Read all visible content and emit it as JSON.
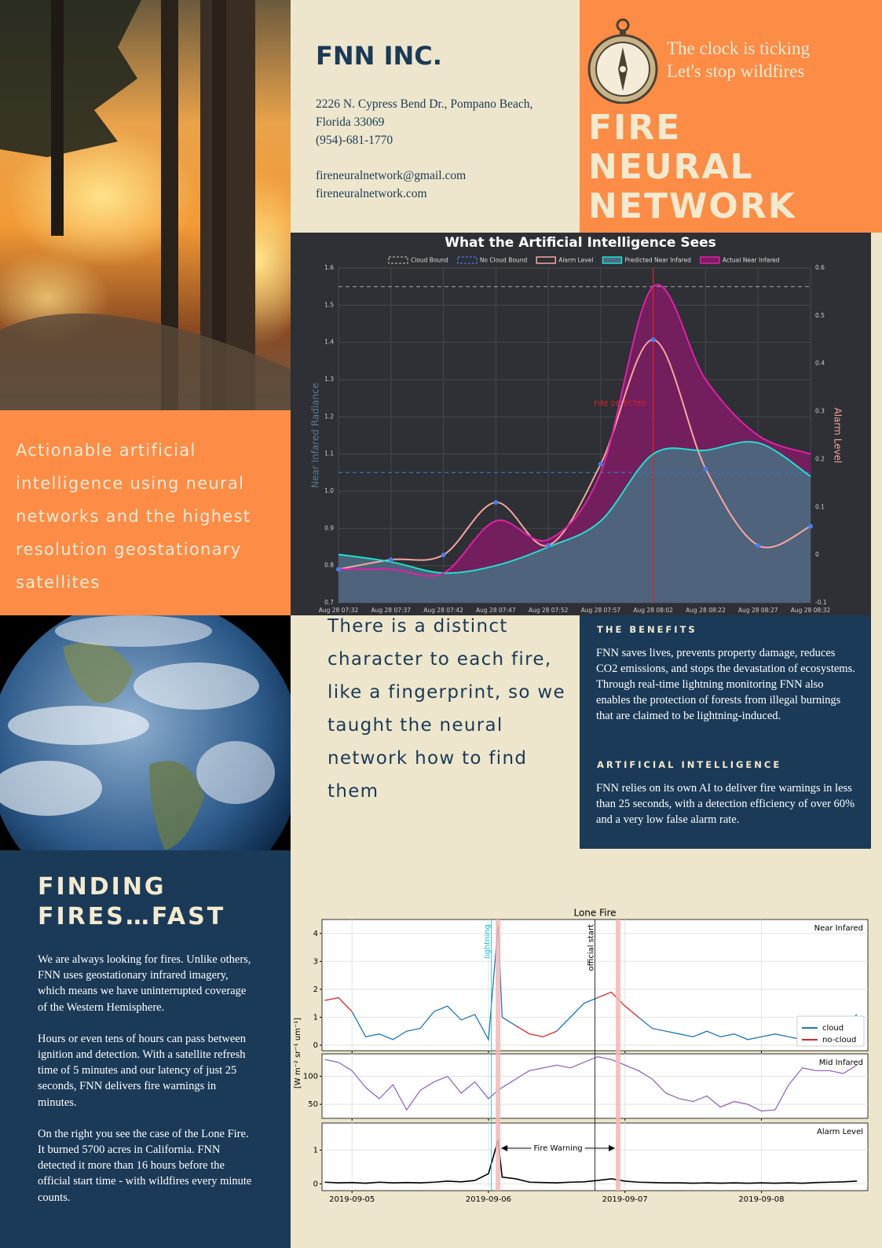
{
  "header": {
    "company": "FNN INC.",
    "address": [
      "2226 N. Cypress Bend Dr., Pompano Beach,",
      "Florida 33069",
      "(954)-681-1770"
    ],
    "contact": [
      "fireneuralnetwork@gmail.com",
      "fireneuralnetwork.com"
    ]
  },
  "banner": {
    "tagline": [
      "The clock is ticking",
      "Let's stop wildfires"
    ],
    "title": [
      "FIRE",
      "NEURAL",
      "NETWORK"
    ]
  },
  "intro": "Actionable artificial intelligence using neural networks and the highest resolution geostationary satellites",
  "quote": "There is a distinct character to each fire, like a fingerprint, so we taught the neural network how to find them",
  "benefits": {
    "heading": "THE BENEFITS",
    "text": "FNN saves lives, prevents property damage, reduces CO2 emissions, and stops the devastation of ecosystems. Through real-time lightning monitoring FNN also enables the protection of forests from illegal burnings that are claimed to be lightning-induced."
  },
  "ai": {
    "heading": "ARTIFICIAL INTELLIGENCE",
    "text": "FNN relies on its own AI to deliver fire warnings in less than 25 seconds, with a detection efficiency of over 60% and a very low false alarm rate."
  },
  "finding": {
    "title": [
      "FINDING",
      "FIRES…FAST"
    ],
    "paragraphs": [
      "We are always looking for fires. Unlike others, FNN uses geostationary infrared imagery, which means we have uninterrupted coverage of the Western Hemisphere.",
      "Hours or even tens of hours can pass between ignition and detection. With a satellite refresh time of 5 minutes and our latency of just 25 seconds, FNN delivers fire warnings in minutes.",
      "On the right you see the case of the Lone Fire. It burned 5700 acres in California. FNN detected it more than 16 hours before the official start time - with wildfires every minute counts."
    ]
  },
  "chart_data": [
    {
      "type": "line",
      "title": "What the Artificial Intelligence Sees",
      "categories": [
        "Aug 28 07:32",
        "Aug 28 07:37",
        "Aug 28 07:42",
        "Aug 28 07:47",
        "Aug 28 07:52",
        "Aug 28 07:57",
        "Aug 28 08:02",
        "Aug 28 08:22",
        "Aug 28 08:27",
        "Aug 28 08:32"
      ],
      "ylabel": "Near Infared Radiance",
      "y2label": "Alarm Level",
      "ylim": [
        0.7,
        1.6
      ],
      "yticks": [
        0.7,
        0.8,
        0.9,
        {
          "value": 1,
          "label": "1.0"
        },
        1.1,
        1.2,
        1.3,
        1.4,
        1.5,
        1.6
      ],
      "y2lim": [
        -0.1,
        0.6
      ],
      "y2ticks": [
        -0.1,
        0,
        0.1,
        0.2,
        0.3,
        0.4,
        0.5,
        0.6
      ],
      "grid": true,
      "legend": "top",
      "series": [
        {
          "name": "Cloud Bound",
          "color": "#9a9a9a",
          "dashed": true,
          "values": [
            1.55,
            1.55,
            1.55,
            1.55,
            1.55,
            1.55,
            1.55,
            1.55,
            1.55,
            1.55
          ]
        },
        {
          "name": "No Cloud Bound",
          "color": "#3f6fd0",
          "dashed": true,
          "values": [
            1.05,
            1.05,
            1.05,
            1.05,
            1.05,
            1.05,
            1.05,
            1.05,
            1.05,
            1.05
          ]
        },
        {
          "name": "Alarm Level",
          "color": "#f6a5a0",
          "axis": "y2",
          "marker_color": "#4a7de8",
          "values": [
            -0.03,
            -0.01,
            0.0,
            0.11,
            0.02,
            0.19,
            0.45,
            0.18,
            0.02,
            0.06
          ]
        },
        {
          "name": "Predicted Near Infared",
          "color": "#1fe0d0",
          "fill": "#4b6a80",
          "values": [
            0.83,
            0.81,
            0.78,
            0.8,
            0.85,
            0.92,
            1.1,
            1.11,
            1.13,
            1.04
          ]
        },
        {
          "name": "Actual Near Infared",
          "color": "#e020a8",
          "fill": "#7b1d62",
          "values": [
            0.79,
            0.79,
            0.78,
            0.92,
            0.87,
            1.05,
            1.55,
            1.3,
            1.15,
            1.1
          ]
        }
      ],
      "annotation": {
        "text": "FIRE DETECTED",
        "color": "#d62728"
      }
    },
    {
      "type": "line",
      "title": "Lone Fire",
      "ylabel": "[W m⁻² sr⁻¹ um⁻¹]",
      "x": [
        4.8,
        4.9,
        5.0,
        5.1,
        5.2,
        5.3,
        5.4,
        5.5,
        5.6,
        5.7,
        5.8,
        5.9,
        6.0,
        6.07,
        6.1,
        6.2,
        6.3,
        6.4,
        6.5,
        6.6,
        6.7,
        6.8,
        6.9,
        7.0,
        7.1,
        7.2,
        7.3,
        7.4,
        7.5,
        7.6,
        7.7,
        7.8,
        7.9,
        8.0,
        8.1,
        8.2,
        8.3,
        8.4,
        8.5,
        8.6,
        8.7
      ],
      "xlim": [
        4.78,
        8.78
      ],
      "xticks": [
        {
          "value": 5,
          "label": "2019-09-05"
        },
        {
          "value": 6,
          "label": "2019-09-06"
        },
        {
          "value": 7,
          "label": "2019-09-07"
        },
        {
          "value": 8,
          "label": "2019-09-08"
        }
      ],
      "grid": true,
      "legend": "lower right",
      "events": [
        {
          "label": "lightning",
          "x": 6.02,
          "color": "#17becf"
        },
        {
          "label": "official start",
          "x": 6.78,
          "color": "#000000"
        }
      ],
      "highlights": [
        6.07,
        6.95
      ],
      "highlight_color": "#f4b6b6",
      "warning_label": "Fire Warning",
      "panels": [
        {
          "label": "Near Infared",
          "ylim": [
            -0.2,
            4.5
          ],
          "yticks": [
            0,
            1,
            2,
            3,
            4
          ],
          "series": [
            {
              "name": "cloud",
              "color": "#1f77b4",
              "values": [
                null,
                null,
                1.2,
                0.3,
                0.4,
                0.2,
                0.5,
                0.6,
                1.2,
                1.4,
                0.9,
                1.1,
                0.2,
                4.3,
                1.0,
                0.7,
                null,
                null,
                0.5,
                1.0,
                1.5,
                1.7,
                null,
                null,
                1.0,
                0.6,
                0.5,
                0.4,
                0.3,
                0.5,
                0.3,
                0.4,
                0.2,
                0.3,
                0.4,
                0.3,
                0.2,
                0.6,
                0.8,
                0.7,
                1.1
              ]
            },
            {
              "name": "no-cloud",
              "color": "#d62728",
              "values": [
                1.6,
                1.7,
                1.2,
                null,
                null,
                null,
                null,
                null,
                null,
                null,
                null,
                null,
                null,
                null,
                null,
                0.7,
                0.4,
                0.3,
                0.5,
                null,
                null,
                1.7,
                1.9,
                1.4,
                1.0,
                null,
                null,
                null,
                null,
                null,
                null,
                null,
                null,
                null,
                null,
                null,
                null,
                null,
                null,
                null,
                null
              ]
            }
          ]
        },
        {
          "label": "Mid Infared",
          "ylim": [
            25,
            140
          ],
          "yticks": [
            50,
            100
          ],
          "series": [
            {
              "color": "#9467bd",
              "values": [
                130,
                125,
                110,
                80,
                60,
                85,
                40,
                75,
                90,
                100,
                70,
                90,
                60,
                75,
                80,
                95,
                110,
                115,
                120,
                115,
                125,
                135,
                130,
                120,
                110,
                95,
                70,
                60,
                55,
                65,
                45,
                55,
                50,
                38,
                40,
                85,
                115,
                110,
                110,
                105,
                120
              ]
            }
          ]
        },
        {
          "label": "Alarm Level",
          "ylim": [
            -0.2,
            1.8
          ],
          "yticks": [
            0,
            1
          ],
          "series": [
            {
              "color": "#000000",
              "values": [
                0.05,
                0.03,
                0.04,
                0.02,
                0.05,
                0.03,
                0.04,
                0.03,
                0.05,
                0.08,
                0.06,
                0.1,
                0.3,
                1.3,
                0.2,
                0.15,
                0.05,
                0.04,
                0.03,
                0.05,
                0.06,
                0.1,
                0.15,
                0.08,
                0.05,
                0.04,
                0.03,
                0.03,
                0.02,
                0.03,
                0.02,
                0.03,
                0.02,
                0.03,
                0.02,
                0.03,
                0.02,
                0.04,
                0.05,
                0.06,
                0.08
              ]
            }
          ]
        }
      ]
    }
  ]
}
